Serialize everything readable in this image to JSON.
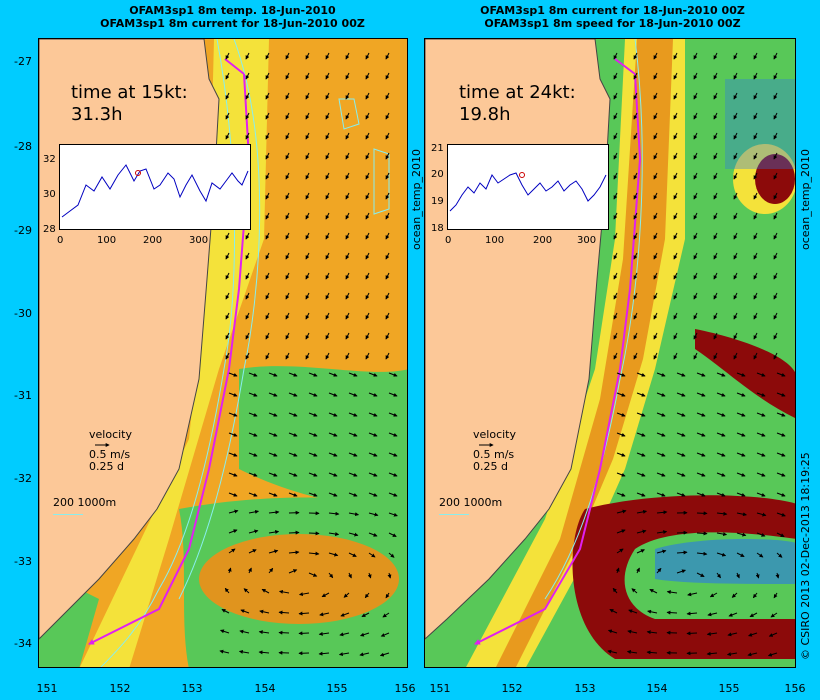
{
  "left_panel": {
    "title_line1": "OFAM3sp1 8m temp. 18-Jun-2010",
    "title_line2": "OFAM3sp1 8m current for 18-Jun-2010 00Z",
    "time_label": "time at 15kt:",
    "time_value": "31.3h",
    "inset_y_ticks": [
      "32",
      "30",
      "28"
    ],
    "inset_x_ticks": [
      "0",
      "100",
      "200",
      "300"
    ],
    "velocity_label": "velocity",
    "velocity_value": "0.5 m/s",
    "velocity_days": "0.25 d",
    "contour_label": "200  1000m",
    "side_label": "ocean_temp_2010"
  },
  "right_panel": {
    "title_line1": "OFAM3sp1 8m current for 18-Jun-2010 00Z",
    "title_line2": "OFAM3sp1 8m speed for 18-Jun-2010 00Z",
    "time_label": "time at 24kt:",
    "time_value": "19.8h",
    "inset_y_ticks": [
      "21",
      "20",
      "19",
      "18"
    ],
    "inset_x_ticks": [
      "0",
      "100",
      "200",
      "300"
    ],
    "velocity_label": "velocity",
    "velocity_value": "0.5 m/s",
    "velocity_days": "0.25 d",
    "contour_label": "200  1000m",
    "side_label": "ocean_temp_2010"
  },
  "y_ticks": [
    "-27",
    "-28",
    "-29",
    "-30",
    "-31",
    "-32",
    "-33",
    "-34"
  ],
  "x_ticks": [
    "151",
    "152",
    "153",
    "154",
    "155",
    "156"
  ],
  "credit": "© CSIRO 2013  02-Dec-2013 18:19:25",
  "colors": {
    "background": "#00ccff",
    "land": "#fcc898",
    "warm": "#e89a1e",
    "yellow": "#f4e23a",
    "green": "#58c858",
    "blue": "#2a78e8",
    "dark_red": "#8c0a0a",
    "route": "#e020f0"
  }
}
